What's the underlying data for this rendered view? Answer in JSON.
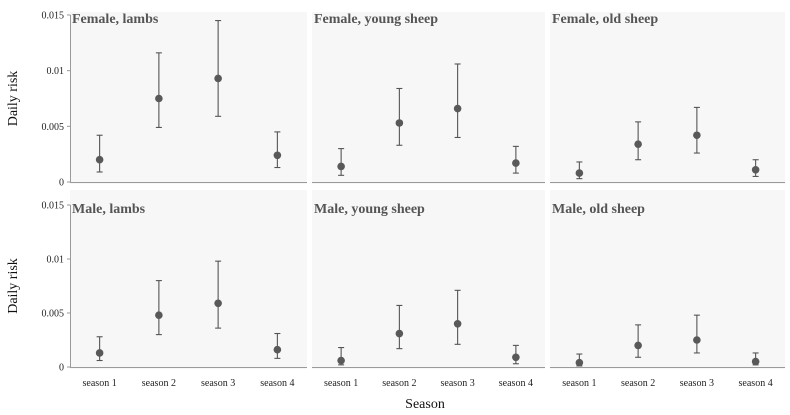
{
  "chart_data": {
    "type": "scatter",
    "subtype": "point-with-error-bars",
    "categories": [
      "season 1",
      "season 2",
      "season 3",
      "season 4"
    ],
    "xlabel": "Season",
    "ylabel": "Daily risk",
    "ylim": [
      0,
      0.015
    ],
    "yticks": [
      0,
      0.005,
      0.01,
      0.015
    ],
    "ytick_labels": [
      "0",
      "0.005",
      "0.01",
      "0.015"
    ],
    "colors": {
      "point": "#595959",
      "errbar": "#555555",
      "panel_bg": "#f7f7f7",
      "title": "#555555"
    },
    "panels": [
      {
        "title": "Female, lambs",
        "values": [
          0.002,
          0.0075,
          0.0093,
          0.0024
        ],
        "lower": [
          0.0009,
          0.0049,
          0.0059,
          0.0013
        ],
        "upper": [
          0.0042,
          0.0116,
          0.0145,
          0.0045
        ]
      },
      {
        "title": "Female, young sheep",
        "values": [
          0.0014,
          0.0053,
          0.0066,
          0.0017
        ],
        "lower": [
          0.0006,
          0.0033,
          0.004,
          0.0008
        ],
        "upper": [
          0.003,
          0.0084,
          0.0106,
          0.0032
        ]
      },
      {
        "title": "Female, old sheep",
        "values": [
          0.0008,
          0.0034,
          0.0042,
          0.0011
        ],
        "lower": [
          0.0003,
          0.002,
          0.0026,
          0.0005
        ],
        "upper": [
          0.0018,
          0.0054,
          0.0067,
          0.002
        ]
      },
      {
        "title": "Male, lambs",
        "values": [
          0.0013,
          0.0048,
          0.0059,
          0.0016
        ],
        "lower": [
          0.0006,
          0.003,
          0.0036,
          0.0008
        ],
        "upper": [
          0.0028,
          0.008,
          0.0098,
          0.0031
        ]
      },
      {
        "title": "Male, young sheep",
        "values": [
          0.0006,
          0.0031,
          0.004,
          0.0009
        ],
        "lower": [
          0.0002,
          0.0017,
          0.0021,
          0.0003
        ],
        "upper": [
          0.0018,
          0.0057,
          0.0071,
          0.002
        ]
      },
      {
        "title": "Male, old sheep",
        "values": [
          0.0004,
          0.002,
          0.0025,
          0.0005
        ],
        "lower": [
          0.0001,
          0.0009,
          0.0013,
          0.0002
        ],
        "upper": [
          0.0012,
          0.0039,
          0.0048,
          0.0013
        ]
      }
    ]
  }
}
